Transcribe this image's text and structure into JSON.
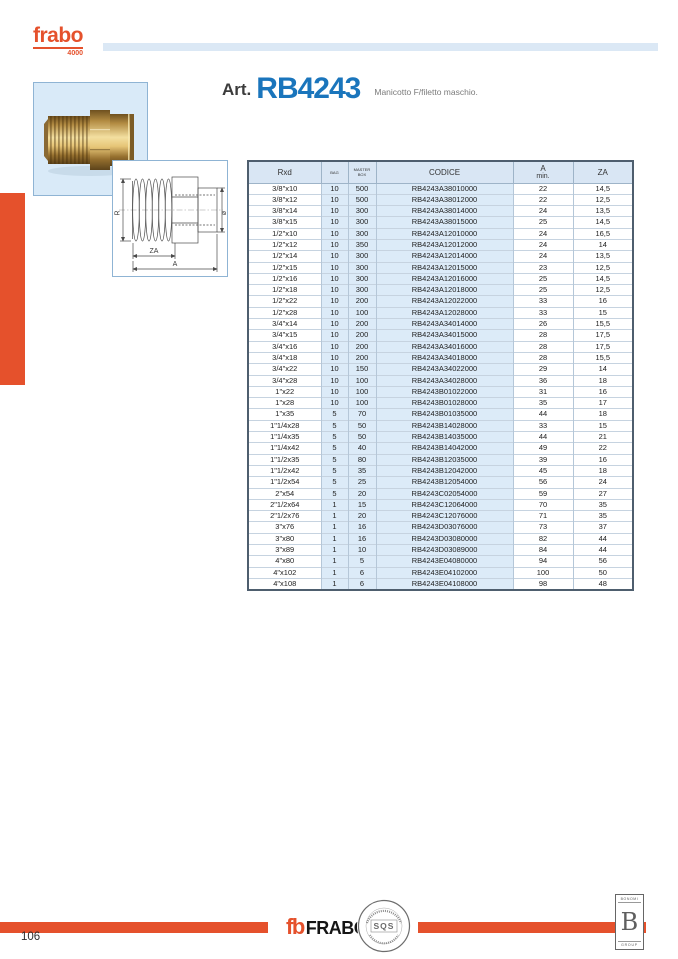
{
  "page": {
    "number": "106"
  },
  "brand": {
    "name": "frabo",
    "series": "4000"
  },
  "article": {
    "prefix": "Art.",
    "code": "RB4243",
    "description": "Manicotto F/filetto maschio."
  },
  "diagram": {
    "label_r": "R",
    "label_diameter": "ø",
    "label_za": "ZA",
    "label_a": "A"
  },
  "table": {
    "columns": [
      {
        "label": "Rxd"
      },
      {
        "label": "BAG",
        "small": true
      },
      {
        "label": "MASTER",
        "sub": "BOX",
        "small": true
      },
      {
        "label": "CODICE"
      },
      {
        "label": "A",
        "sub": "min."
      },
      {
        "label": "ZA"
      }
    ],
    "rows": [
      [
        "3/8\"x10",
        "10",
        "500",
        "RB4243A38010000",
        "22",
        "14,5"
      ],
      [
        "3/8\"x12",
        "10",
        "500",
        "RB4243A38012000",
        "22",
        "12,5"
      ],
      [
        "3/8\"x14",
        "10",
        "300",
        "RB4243A38014000",
        "24",
        "13,5"
      ],
      [
        "3/8\"x15",
        "10",
        "300",
        "RB4243A38015000",
        "25",
        "14,5"
      ],
      [
        "1/2\"x10",
        "10",
        "300",
        "RB4243A12010000",
        "24",
        "16,5"
      ],
      [
        "1/2\"x12",
        "10",
        "350",
        "RB4243A12012000",
        "24",
        "14"
      ],
      [
        "1/2\"x14",
        "10",
        "300",
        "RB4243A12014000",
        "24",
        "13,5"
      ],
      [
        "1/2\"x15",
        "10",
        "300",
        "RB4243A12015000",
        "23",
        "12,5"
      ],
      [
        "1/2\"x16",
        "10",
        "300",
        "RB4243A12016000",
        "25",
        "14,5"
      ],
      [
        "1/2\"x18",
        "10",
        "300",
        "RB4243A12018000",
        "25",
        "12,5"
      ],
      [
        "1/2\"x22",
        "10",
        "200",
        "RB4243A12022000",
        "33",
        "16"
      ],
      [
        "1/2\"x28",
        "10",
        "100",
        "RB4243A12028000",
        "33",
        "15"
      ],
      [
        "3/4\"x14",
        "10",
        "200",
        "RB4243A34014000",
        "26",
        "15,5"
      ],
      [
        "3/4\"x15",
        "10",
        "200",
        "RB4243A34015000",
        "28",
        "17,5"
      ],
      [
        "3/4\"x16",
        "10",
        "200",
        "RB4243A34016000",
        "28",
        "17,5"
      ],
      [
        "3/4\"x18",
        "10",
        "200",
        "RB4243A34018000",
        "28",
        "15,5"
      ],
      [
        "3/4\"x22",
        "10",
        "150",
        "RB4243A34022000",
        "29",
        "14"
      ],
      [
        "3/4\"x28",
        "10",
        "100",
        "RB4243A34028000",
        "36",
        "18"
      ],
      [
        "1\"x22",
        "10",
        "100",
        "RB4243B01022000",
        "31",
        "16"
      ],
      [
        "1\"x28",
        "10",
        "100",
        "RB4243B01028000",
        "35",
        "17"
      ],
      [
        "1\"x35",
        "5",
        "70",
        "RB4243B01035000",
        "44",
        "18"
      ],
      [
        "1\"1/4x28",
        "5",
        "50",
        "RB4243B14028000",
        "33",
        "15"
      ],
      [
        "1\"1/4x35",
        "5",
        "50",
        "RB4243B14035000",
        "44",
        "21"
      ],
      [
        "1\"1/4x42",
        "5",
        "40",
        "RB4243B14042000",
        "49",
        "22"
      ],
      [
        "1\"1/2x35",
        "5",
        "80",
        "RB4243B12035000",
        "39",
        "16"
      ],
      [
        "1\"1/2x42",
        "5",
        "35",
        "RB4243B12042000",
        "45",
        "18"
      ],
      [
        "1\"1/2x54",
        "5",
        "25",
        "RB4243B12054000",
        "56",
        "24"
      ],
      [
        "2\"x54",
        "5",
        "20",
        "RB4243C02054000",
        "59",
        "27"
      ],
      [
        "2\"1/2x64",
        "1",
        "15",
        "RB4243C12064000",
        "70",
        "35"
      ],
      [
        "2\"1/2x76",
        "1",
        "20",
        "RB4243C12076000",
        "71",
        "35"
      ],
      [
        "3\"x76",
        "1",
        "16",
        "RB4243D03076000",
        "73",
        "37"
      ],
      [
        "3\"x80",
        "1",
        "16",
        "RB4243D03080000",
        "82",
        "44"
      ],
      [
        "3\"x89",
        "1",
        "10",
        "RB4243D03089000",
        "84",
        "44"
      ],
      [
        "4\"x80",
        "1",
        "5",
        "RB4243E04080000",
        "94",
        "56"
      ],
      [
        "4\"x102",
        "1",
        "6",
        "RB4243E04102000",
        "100",
        "50"
      ],
      [
        "4\"x108",
        "1",
        "6",
        "RB4243E04108000",
        "98",
        "48"
      ]
    ]
  },
  "footer": {
    "logo_glyph": "fb",
    "logo_text": "FRABO",
    "stamp_center": "SQS",
    "group_top": "BONOMI",
    "group_letter": "B",
    "group_bottom": "GROUP"
  },
  "colors": {
    "accent_orange": "#e5512c",
    "title_blue": "#1a75bc",
    "band_blue": "#dbe8f5",
    "table_header_blue": "#d9e6f4",
    "table_cell_blue": "#dcebf8",
    "table_border": "#4e5e6e"
  }
}
